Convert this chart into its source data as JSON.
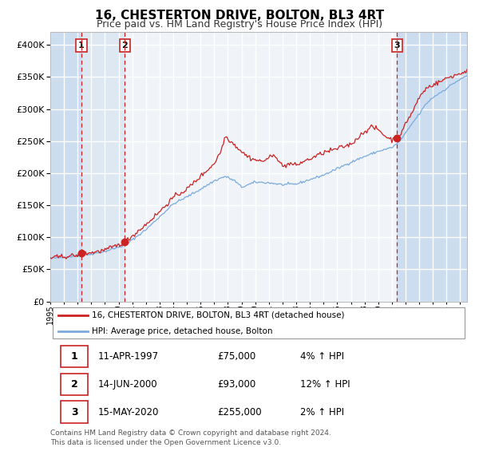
{
  "title": "16, CHESTERTON DRIVE, BOLTON, BL3 4RT",
  "subtitle": "Price paid vs. HM Land Registry's House Price Index (HPI)",
  "legend_line1": "16, CHESTERTON DRIVE, BOLTON, BL3 4RT (detached house)",
  "legend_line2": "HPI: Average price, detached house, Bolton",
  "footer1": "Contains HM Land Registry data © Crown copyright and database right 2024.",
  "footer2": "This data is licensed under the Open Government Licence v3.0.",
  "purchases": [
    {
      "label": "1",
      "date": "11-APR-1997",
      "price": 75000,
      "pct": "4%",
      "x_year": 1997.27
    },
    {
      "label": "2",
      "date": "14-JUN-2000",
      "price": 93000,
      "pct": "12%",
      "x_year": 2000.45
    },
    {
      "label": "3",
      "date": "15-MAY-2020",
      "price": 255000,
      "pct": "2%",
      "x_year": 2020.37
    }
  ],
  "table_rows": [
    [
      "1",
      "11-APR-1997",
      "£75,000",
      "4% ↑ HPI"
    ],
    [
      "2",
      "14-JUN-2000",
      "£93,000",
      "12% ↑ HPI"
    ],
    [
      "3",
      "15-MAY-2020",
      "£255,000",
      "2% ↑ HPI"
    ]
  ],
  "ylim": [
    0,
    420000
  ],
  "xlim_start": 1995.0,
  "xlim_end": 2025.5,
  "hpi_color": "#7aaadd",
  "price_color": "#cc2222",
  "plot_bg": "#f0f4f8",
  "grid_color": "#ffffff",
  "vline_color": "#cc2222",
  "marker_color": "#cc2222",
  "shade_color": "#ccddf0"
}
